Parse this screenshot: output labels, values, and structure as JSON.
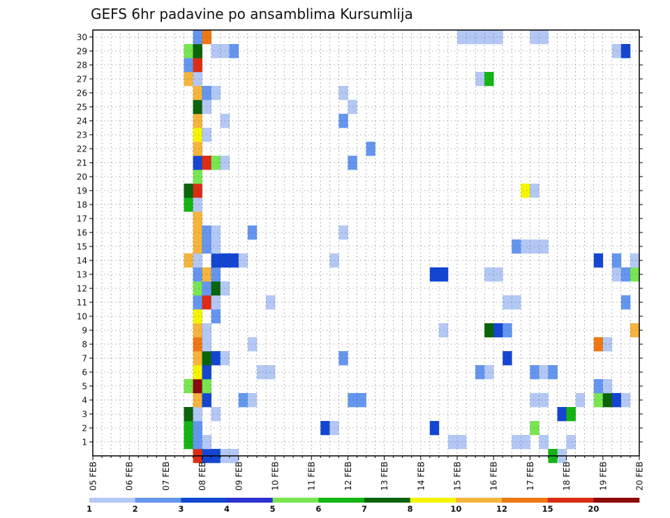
{
  "chart_data": {
    "type": "heatmap",
    "title": "GEFS 6hr padavine po ansamblima Kursumlija",
    "x_tick_labels": [
      "05 FEB",
      "06 FEB",
      "07 FEB",
      "08 FEB",
      "09 FEB",
      "10 FEB",
      "11 FEB",
      "12 FEB",
      "13 FEB",
      "14 FEB",
      "15 FEB",
      "16 FEB",
      "17 FEB",
      "18 FEB",
      "19 FEB",
      "20 FEB"
    ],
    "y_tick_labels": [
      "1",
      "2",
      "3",
      "4",
      "5",
      "6",
      "7",
      "8",
      "9",
      "10",
      "11",
      "12",
      "13",
      "14",
      "15",
      "16",
      "17",
      "18",
      "19",
      "20",
      "21",
      "22",
      "23",
      "24",
      "25",
      "26",
      "27",
      "28",
      "29",
      "30"
    ],
    "x_range_steps": [
      0,
      60
    ],
    "y_range": [
      0,
      30
    ],
    "grid": true,
    "legend_placement": "bottom",
    "legend_labels": [
      "1",
      "2",
      "3",
      "4",
      "5",
      "6",
      "7",
      "8",
      "10",
      "12",
      "15",
      "20"
    ],
    "colors": [
      "#b4c8f5",
      "#6496f0",
      "#1446d2",
      "#2d32d2",
      "#78e650",
      "#14b414",
      "#0a640a",
      "#f5f500",
      "#f5b43c",
      "#f07814",
      "#dc2d14",
      "#8c0a0a"
    ],
    "cells": [
      {
        "m": 0,
        "t": 11,
        "c": 10
      },
      {
        "m": 0,
        "t": 12,
        "c": 2
      },
      {
        "m": 0,
        "t": 13,
        "c": 2
      },
      {
        "m": 0,
        "t": 14,
        "c": 0
      },
      {
        "m": 0,
        "t": 15,
        "c": 0
      },
      {
        "m": 0,
        "t": 50,
        "c": 5
      },
      {
        "m": 0,
        "t": 51,
        "c": 0
      },
      {
        "m": 1,
        "t": 10,
        "c": 5
      },
      {
        "m": 1,
        "t": 11,
        "c": 1
      },
      {
        "m": 1,
        "t": 12,
        "c": 0
      },
      {
        "m": 1,
        "t": 39,
        "c": 0
      },
      {
        "m": 1,
        "t": 40,
        "c": 0
      },
      {
        "m": 1,
        "t": 46,
        "c": 0
      },
      {
        "m": 1,
        "t": 47,
        "c": 0
      },
      {
        "m": 1,
        "t": 49,
        "c": 0
      },
      {
        "m": 1,
        "t": 52,
        "c": 0
      },
      {
        "m": 2,
        "t": 10,
        "c": 5
      },
      {
        "m": 2,
        "t": 11,
        "c": 1
      },
      {
        "m": 2,
        "t": 25,
        "c": 2
      },
      {
        "m": 2,
        "t": 26,
        "c": 0
      },
      {
        "m": 2,
        "t": 37,
        "c": 2
      },
      {
        "m": 2,
        "t": 48,
        "c": 4
      },
      {
        "m": 3,
        "t": 10,
        "c": 6
      },
      {
        "m": 3,
        "t": 11,
        "c": 0
      },
      {
        "m": 3,
        "t": 13,
        "c": 0
      },
      {
        "m": 3,
        "t": 51,
        "c": 2
      },
      {
        "m": 3,
        "t": 52,
        "c": 5
      },
      {
        "m": 4,
        "t": 11,
        "c": 8
      },
      {
        "m": 4,
        "t": 12,
        "c": 2
      },
      {
        "m": 4,
        "t": 16,
        "c": 1
      },
      {
        "m": 4,
        "t": 17,
        "c": 0
      },
      {
        "m": 4,
        "t": 28,
        "c": 1
      },
      {
        "m": 4,
        "t": 29,
        "c": 1
      },
      {
        "m": 4,
        "t": 48,
        "c": 0
      },
      {
        "m": 4,
        "t": 49,
        "c": 0
      },
      {
        "m": 4,
        "t": 53,
        "c": 0
      },
      {
        "m": 4,
        "t": 55,
        "c": 4
      },
      {
        "m": 4,
        "t": 56,
        "c": 6
      },
      {
        "m": 4,
        "t": 57,
        "c": 2
      },
      {
        "m": 4,
        "t": 58,
        "c": 0
      },
      {
        "m": 5,
        "t": 10,
        "c": 4
      },
      {
        "m": 5,
        "t": 11,
        "c": 11
      },
      {
        "m": 5,
        "t": 12,
        "c": 4
      },
      {
        "m": 5,
        "t": 55,
        "c": 1
      },
      {
        "m": 5,
        "t": 56,
        "c": 0
      },
      {
        "m": 6,
        "t": 11,
        "c": 7
      },
      {
        "m": 6,
        "t": 12,
        "c": 2
      },
      {
        "m": 6,
        "t": 18,
        "c": 0
      },
      {
        "m": 6,
        "t": 19,
        "c": 0
      },
      {
        "m": 6,
        "t": 42,
        "c": 1
      },
      {
        "m": 6,
        "t": 43,
        "c": 0
      },
      {
        "m": 6,
        "t": 48,
        "c": 1
      },
      {
        "m": 6,
        "t": 49,
        "c": 0
      },
      {
        "m": 6,
        "t": 50,
        "c": 1
      },
      {
        "m": 7,
        "t": 11,
        "c": 8
      },
      {
        "m": 7,
        "t": 12,
        "c": 6
      },
      {
        "m": 7,
        "t": 13,
        "c": 2
      },
      {
        "m": 7,
        "t": 14,
        "c": 0
      },
      {
        "m": 7,
        "t": 27,
        "c": 1
      },
      {
        "m": 7,
        "t": 45,
        "c": 2
      },
      {
        "m": 8,
        "t": 11,
        "c": 9
      },
      {
        "m": 8,
        "t": 12,
        "c": 0
      },
      {
        "m": 8,
        "t": 17,
        "c": 0
      },
      {
        "m": 8,
        "t": 55,
        "c": 9
      },
      {
        "m": 8,
        "t": 56,
        "c": 0
      },
      {
        "m": 9,
        "t": 11,
        "c": 8
      },
      {
        "m": 9,
        "t": 12,
        "c": 0
      },
      {
        "m": 9,
        "t": 38,
        "c": 0
      },
      {
        "m": 9,
        "t": 43,
        "c": 6
      },
      {
        "m": 9,
        "t": 44,
        "c": 2
      },
      {
        "m": 9,
        "t": 45,
        "c": 1
      },
      {
        "m": 9,
        "t": 59,
        "c": 8
      },
      {
        "m": 10,
        "t": 11,
        "c": 7
      },
      {
        "m": 10,
        "t": 13,
        "c": 1
      },
      {
        "m": 11,
        "t": 11,
        "c": 1
      },
      {
        "m": 11,
        "t": 12,
        "c": 10
      },
      {
        "m": 11,
        "t": 13,
        "c": 0
      },
      {
        "m": 11,
        "t": 19,
        "c": 0
      },
      {
        "m": 11,
        "t": 45,
        "c": 0
      },
      {
        "m": 11,
        "t": 46,
        "c": 0
      },
      {
        "m": 11,
        "t": 58,
        "c": 1
      },
      {
        "m": 12,
        "t": 11,
        "c": 4
      },
      {
        "m": 12,
        "t": 12,
        "c": 1
      },
      {
        "m": 12,
        "t": 13,
        "c": 6
      },
      {
        "m": 12,
        "t": 14,
        "c": 0
      },
      {
        "m": 13,
        "t": 11,
        "c": 1
      },
      {
        "m": 13,
        "t": 12,
        "c": 8
      },
      {
        "m": 13,
        "t": 13,
        "c": 1
      },
      {
        "m": 13,
        "t": 37,
        "c": 2
      },
      {
        "m": 13,
        "t": 38,
        "c": 2
      },
      {
        "m": 13,
        "t": 43,
        "c": 0
      },
      {
        "m": 13,
        "t": 44,
        "c": 0
      },
      {
        "m": 13,
        "t": 57,
        "c": 0
      },
      {
        "m": 13,
        "t": 58,
        "c": 1
      },
      {
        "m": 13,
        "t": 59,
        "c": 4
      },
      {
        "m": 14,
        "t": 10,
        "c": 8
      },
      {
        "m": 14,
        "t": 11,
        "c": 0
      },
      {
        "m": 14,
        "t": 13,
        "c": 2
      },
      {
        "m": 14,
        "t": 14,
        "c": 2
      },
      {
        "m": 14,
        "t": 15,
        "c": 2
      },
      {
        "m": 14,
        "t": 16,
        "c": 0
      },
      {
        "m": 14,
        "t": 26,
        "c": 0
      },
      {
        "m": 14,
        "t": 55,
        "c": 2
      },
      {
        "m": 14,
        "t": 57,
        "c": 1
      },
      {
        "m": 14,
        "t": 59,
        "c": 0
      },
      {
        "m": 15,
        "t": 11,
        "c": 8
      },
      {
        "m": 15,
        "t": 12,
        "c": 1
      },
      {
        "m": 15,
        "t": 13,
        "c": 0
      },
      {
        "m": 15,
        "t": 46,
        "c": 1
      },
      {
        "m": 15,
        "t": 47,
        "c": 0
      },
      {
        "m": 15,
        "t": 48,
        "c": 0
      },
      {
        "m": 15,
        "t": 49,
        "c": 0
      },
      {
        "m": 16,
        "t": 11,
        "c": 8
      },
      {
        "m": 16,
        "t": 12,
        "c": 1
      },
      {
        "m": 16,
        "t": 13,
        "c": 0
      },
      {
        "m": 16,
        "t": 17,
        "c": 1
      },
      {
        "m": 16,
        "t": 27,
        "c": 0
      },
      {
        "m": 17,
        "t": 11,
        "c": 8
      },
      {
        "m": 18,
        "t": 10,
        "c": 5
      },
      {
        "m": 18,
        "t": 11,
        "c": 0
      },
      {
        "m": 19,
        "t": 10,
        "c": 6
      },
      {
        "m": 19,
        "t": 11,
        "c": 10
      },
      {
        "m": 19,
        "t": 47,
        "c": 7
      },
      {
        "m": 19,
        "t": 48,
        "c": 0
      },
      {
        "m": 20,
        "t": 11,
        "c": 4
      },
      {
        "m": 21,
        "t": 11,
        "c": 2
      },
      {
        "m": 21,
        "t": 12,
        "c": 10
      },
      {
        "m": 21,
        "t": 13,
        "c": 4
      },
      {
        "m": 21,
        "t": 14,
        "c": 0
      },
      {
        "m": 21,
        "t": 28,
        "c": 1
      },
      {
        "m": 22,
        "t": 11,
        "c": 8
      },
      {
        "m": 22,
        "t": 30,
        "c": 1
      },
      {
        "m": 23,
        "t": 11,
        "c": 7
      },
      {
        "m": 23,
        "t": 12,
        "c": 0
      },
      {
        "m": 24,
        "t": 11,
        "c": 8
      },
      {
        "m": 24,
        "t": 14,
        "c": 0
      },
      {
        "m": 24,
        "t": 27,
        "c": 1
      },
      {
        "m": 25,
        "t": 11,
        "c": 6
      },
      {
        "m": 25,
        "t": 12,
        "c": 0
      },
      {
        "m": 25,
        "t": 28,
        "c": 0
      },
      {
        "m": 26,
        "t": 11,
        "c": 8
      },
      {
        "m": 26,
        "t": 12,
        "c": 1
      },
      {
        "m": 26,
        "t": 13,
        "c": 0
      },
      {
        "m": 26,
        "t": 27,
        "c": 0
      },
      {
        "m": 27,
        "t": 10,
        "c": 8
      },
      {
        "m": 27,
        "t": 11,
        "c": 0
      },
      {
        "m": 27,
        "t": 42,
        "c": 0
      },
      {
        "m": 27,
        "t": 43,
        "c": 5
      },
      {
        "m": 28,
        "t": 10,
        "c": 1
      },
      {
        "m": 28,
        "t": 11,
        "c": 10
      },
      {
        "m": 29,
        "t": 10,
        "c": 4
      },
      {
        "m": 29,
        "t": 11,
        "c": 6
      },
      {
        "m": 29,
        "t": 13,
        "c": 0
      },
      {
        "m": 29,
        "t": 14,
        "c": 0
      },
      {
        "m": 29,
        "t": 15,
        "c": 1
      },
      {
        "m": 29,
        "t": 57,
        "c": 0
      },
      {
        "m": 29,
        "t": 58,
        "c": 2
      },
      {
        "m": 30,
        "t": 11,
        "c": 1
      },
      {
        "m": 30,
        "t": 12,
        "c": 9
      },
      {
        "m": 30,
        "t": 40,
        "c": 0
      },
      {
        "m": 30,
        "t": 41,
        "c": 0
      },
      {
        "m": 30,
        "t": 42,
        "c": 0
      },
      {
        "m": 30,
        "t": 43,
        "c": 0
      },
      {
        "m": 30,
        "t": 44,
        "c": 0
      },
      {
        "m": 30,
        "t": 48,
        "c": 0
      },
      {
        "m": 30,
        "t": 49,
        "c": 0
      }
    ]
  }
}
